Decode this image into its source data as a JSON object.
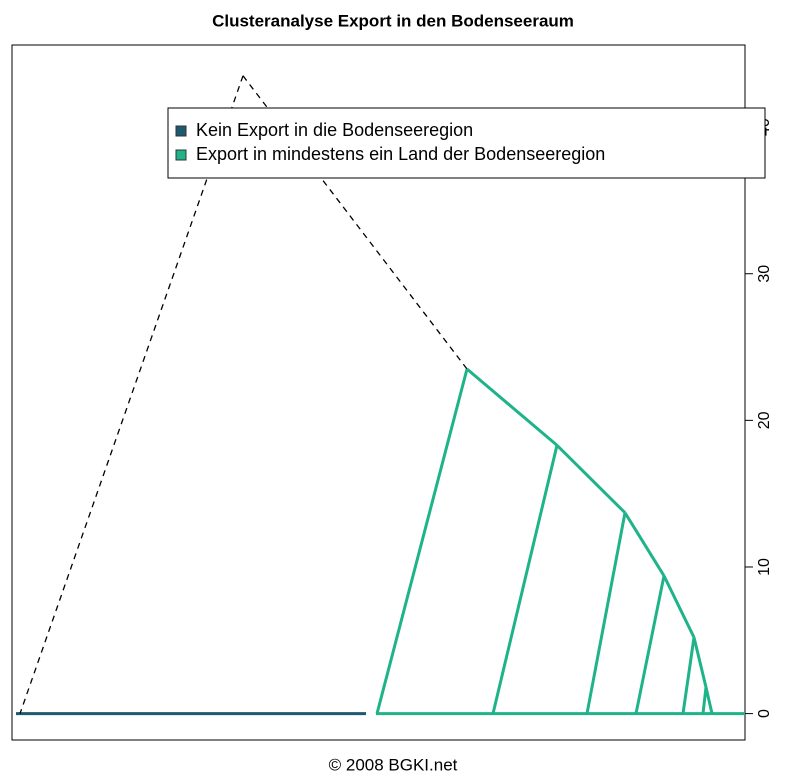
{
  "chart_data": {
    "type": "dendrogram",
    "title": "Clusteranalyse Export in den Bodenseeraum",
    "caption": "© 2008 BGKI.net",
    "series": [
      {
        "name": "Kein Export in die Bodenseeregion",
        "color": "#1d5a70"
      },
      {
        "name": "Export in mindestens ein Land der Bodenseeregion",
        "color": "#1fb38a"
      }
    ],
    "merge_heights": [
      43.5,
      23.5,
      18.3,
      13.7,
      9.4,
      5.2,
      1.8
    ],
    "ylim": [
      -1.8,
      45.6
    ],
    "yticks": [
      0,
      10,
      20,
      30,
      40
    ]
  }
}
